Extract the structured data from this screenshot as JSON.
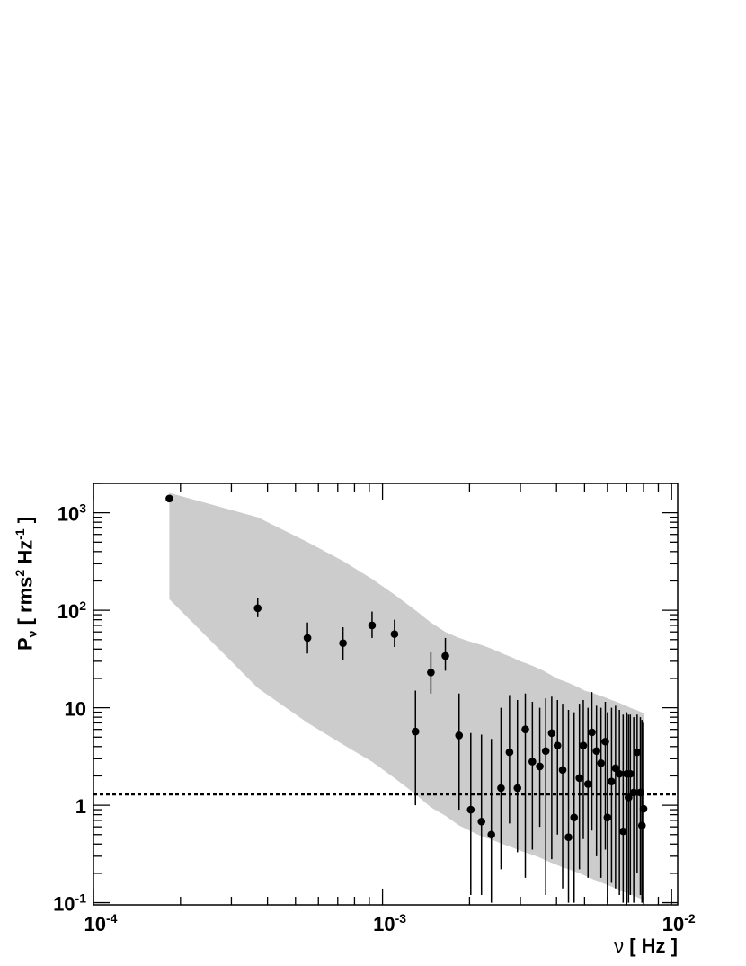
{
  "chart_data": {
    "type": "scatter",
    "title": "",
    "xlabel": "ν [ Hz ]",
    "ylabel": "P_ν [ rms^2 Hz^-1 ]",
    "ylabel_parts": {
      "main": "P",
      "sub": "ν",
      "bracket_open": " [ rms",
      "sup1": "2",
      "mid": " Hz",
      "sup2": "-1",
      "bracket_close": " ]"
    },
    "xlabel_parts": {
      "main": "ν",
      "rest": " [ Hz ]"
    },
    "xscale": "log",
    "yscale": "log",
    "xlim": [
      0.0001,
      0.0105
    ],
    "ylim": [
      0.095,
      2000
    ],
    "x_ticks": [
      {
        "base": "10",
        "exp": "-4",
        "value": 0.0001
      },
      {
        "base": "10",
        "exp": "-3",
        "value": 0.001
      },
      {
        "base": "10",
        "exp": "-2",
        "value": 0.01
      }
    ],
    "y_ticks": [
      {
        "base": "10",
        "exp": "-1",
        "value": 0.1
      },
      {
        "base": "1",
        "exp": "",
        "value": 1
      },
      {
        "base": "10",
        "exp": "",
        "value": 10
      },
      {
        "base": "10",
        "exp": "2",
        "value": 100
      },
      {
        "base": "10",
        "exp": "3",
        "value": 1000
      }
    ],
    "grid": false,
    "colors": {
      "points": "#000000",
      "band": "#cccccc",
      "frame": "#000000",
      "threshold": "#000000"
    },
    "threshold": {
      "value": 1.3,
      "style": "dotted"
    },
    "band": {
      "x": [
        0.000183,
        0.00037,
        0.00055,
        0.00073,
        0.00092,
        0.0011,
        0.0013,
        0.00147,
        0.00165,
        0.00184,
        0.002,
        0.0022,
        0.0024,
        0.0026,
        0.0028,
        0.003,
        0.0032,
        0.0034,
        0.0036,
        0.0038,
        0.004,
        0.0042,
        0.0044,
        0.0046,
        0.0048,
        0.005,
        0.0052,
        0.0054,
        0.0056,
        0.0058,
        0.006,
        0.0062,
        0.0064,
        0.0066,
        0.0068,
        0.007,
        0.0072,
        0.0074,
        0.0076,
        0.0078,
        0.008
      ],
      "upper": [
        1600,
        900,
        500,
        320,
        210,
        145,
        100,
        75,
        60,
        52,
        48,
        44,
        40,
        36,
        33,
        30,
        28,
        26,
        24,
        22,
        20,
        19,
        18,
        17,
        16,
        15,
        14.5,
        14,
        13.5,
        13,
        12.5,
        12,
        11.6,
        11.2,
        10.8,
        10.4,
        10,
        9.7,
        9.4,
        9.1,
        8.8
      ],
      "lower": [
        130,
        16,
        7,
        4.2,
        2.8,
        1.9,
        1.3,
        0.95,
        0.78,
        0.62,
        0.55,
        0.48,
        0.44,
        0.4,
        0.37,
        0.34,
        0.32,
        0.3,
        0.28,
        0.26,
        0.245,
        0.23,
        0.22,
        0.21,
        0.2,
        0.19,
        0.18,
        0.172,
        0.165,
        0.158,
        0.152,
        0.146,
        0.14,
        0.135,
        0.13,
        0.126,
        0.122,
        0.118,
        0.114,
        0.11,
        0.107
      ]
    },
    "series": [
      {
        "x": [
          0.000183,
          0.00037,
          0.00055,
          0.00073,
          0.00092,
          0.0011,
          0.0013,
          0.00147,
          0.00165,
          0.00184,
          0.00202,
          0.0022,
          0.00238,
          0.00257,
          0.00275,
          0.00293,
          0.00312,
          0.0033,
          0.0035,
          0.00367,
          0.00385,
          0.00403,
          0.0042,
          0.0044,
          0.0046,
          0.0048,
          0.00495,
          0.00514,
          0.0053,
          0.0055,
          0.0057,
          0.0059,
          0.006,
          0.0062,
          0.0064,
          0.0066,
          0.0068,
          0.007,
          0.0071,
          0.0072,
          0.0074,
          0.0076,
          0.0078,
          0.0079,
          0.008
        ],
        "y": [
          1400,
          105,
          52,
          46,
          70,
          57,
          5.7,
          23,
          34,
          5.2,
          0.9,
          0.68,
          0.5,
          1.5,
          3.5,
          1.5,
          6.0,
          2.8,
          2.5,
          3.6,
          5.5,
          4.1,
          2.3,
          0.47,
          0.75,
          1.9,
          4.1,
          1.65,
          5.6,
          3.6,
          2.7,
          4.5,
          0.75,
          1.75,
          2.4,
          2.1,
          0.54,
          2.1,
          1.2,
          2.1,
          1.35,
          3.5,
          1.35,
          0.62,
          0.92
        ],
        "y_err_low": [
          1400,
          85,
          36,
          31,
          52,
          42,
          1.0,
          14,
          24,
          0.9,
          0.12,
          0.12,
          0.1,
          0.22,
          0.65,
          0.33,
          0.18,
          0.35,
          0.6,
          0.12,
          0.28,
          0.5,
          0.14,
          0.1,
          0.1,
          0.22,
          0.45,
          0.18,
          0.55,
          0.3,
          0.18,
          0.35,
          0.1,
          0.16,
          0.14,
          0.12,
          0.1,
          0.1,
          0.1,
          0.12,
          0.1,
          0.2,
          0.12,
          0.1,
          0.1
        ],
        "y_err_high": [
          1400,
          135,
          75,
          67,
          97,
          80,
          15,
          37,
          52,
          14,
          5.5,
          5.3,
          4.8,
          10,
          13.5,
          12,
          14,
          11.5,
          10,
          12.5,
          13,
          12,
          11,
          9.5,
          9.0,
          11,
          12,
          10,
          14.5,
          10.5,
          10,
          11.5,
          9,
          10,
          10.5,
          9.5,
          8.5,
          9,
          8.5,
          8.5,
          8,
          8.5,
          8,
          7.5,
          7
        ]
      }
    ]
  }
}
